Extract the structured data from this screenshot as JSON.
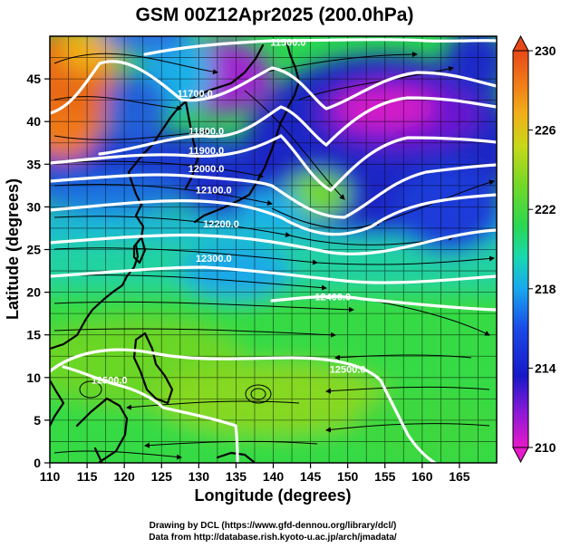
{
  "title": "GSM 00Z12Apr2025 (200.0hPa)",
  "map": {
    "xlabel": "Longitude (degrees)",
    "ylabel": "Latitude  (degrees)",
    "xlim": [
      110,
      170
    ],
    "ylim": [
      0,
      50
    ],
    "xticks": [
      "110",
      "115",
      "120",
      "125",
      "130",
      "135",
      "140",
      "145",
      "150",
      "155",
      "160",
      "165"
    ],
    "yticks": [
      "0",
      "5",
      "10",
      "15",
      "20",
      "25",
      "30",
      "35",
      "40",
      "45"
    ],
    "grid": true
  },
  "contour_labels": [
    {
      "text": "11500.0",
      "lon": 142.0,
      "lat": 49.3
    },
    {
      "text": "11700.0",
      "lon": 129.5,
      "lat": 43.3
    },
    {
      "text": "11800.0",
      "lon": 131.0,
      "lat": 38.9
    },
    {
      "text": "11900.0",
      "lon": 131.0,
      "lat": 36.6
    },
    {
      "text": "12000.0",
      "lon": 131.0,
      "lat": 34.5
    },
    {
      "text": "12100.0",
      "lon": 132.0,
      "lat": 32.0
    },
    {
      "text": "12200.0",
      "lon": 133.0,
      "lat": 28.0
    },
    {
      "text": "12300.0",
      "lon": 132.0,
      "lat": 24.0
    },
    {
      "text": "12400.0",
      "lon": 148.0,
      "lat": 19.5
    },
    {
      "text": "12500.0",
      "lon": 118.0,
      "lat": 9.7
    },
    {
      "text": "12500.0",
      "lon": 150.0,
      "lat": 11.0
    }
  ],
  "colorbar": {
    "min": 210,
    "max": 230,
    "labels": [
      "210",
      "214",
      "218",
      "222",
      "226",
      "230"
    ],
    "colors": [
      "#e81ac8",
      "#8a18d8",
      "#1818c8",
      "#1a4ae8",
      "#18a8ee",
      "#18d8b0",
      "#2ad850",
      "#72d828",
      "#c8d818",
      "#f0b018",
      "#f07a18",
      "#e84818"
    ]
  },
  "credits": [
    "Drawing by DCL (https://www.gfd-dennou.org/library/dcl/)",
    "Data from http://database.rish.kyoto-u.ac.jp/arch/jmadata/"
  ]
}
